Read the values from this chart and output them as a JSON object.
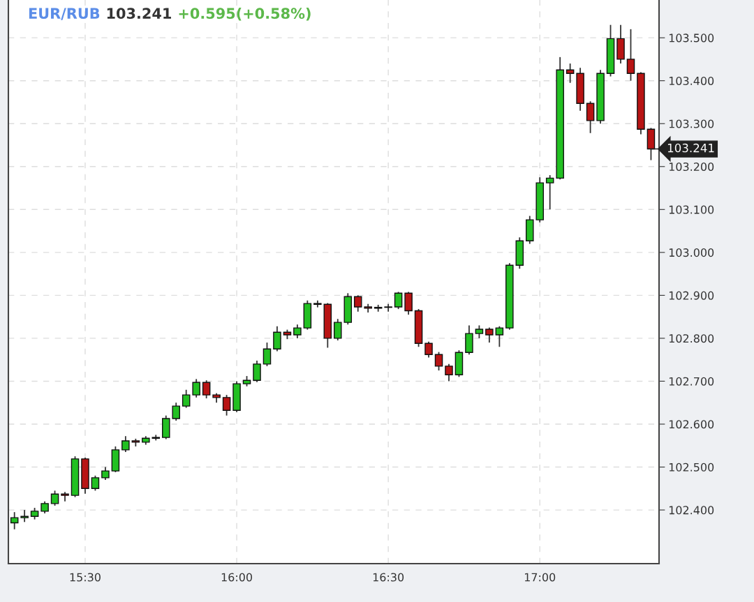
{
  "chart_data": {
    "type": "candlestick",
    "title": "EUR/RUB",
    "annotations": [
      "103.241",
      "+0.595(+0.58%)",
      {
        "text": "103.241",
        "x": 17.3667,
        "y": 103.241
      }
    ],
    "x": [
      15.2667,
      15.3,
      15.3333,
      15.3667,
      15.4,
      15.4333,
      15.4667,
      15.5,
      15.5333,
      15.5667,
      15.6,
      15.6333,
      15.6667,
      15.7,
      15.7333,
      15.7667,
      15.8,
      15.8333,
      15.8667,
      15.9,
      15.9333,
      15.9667,
      16,
      16.0333,
      16.0667,
      16.1,
      16.1333,
      16.1667,
      16.2,
      16.2333,
      16.2667,
      16.3,
      16.3333,
      16.3667,
      16.4,
      16.4333,
      16.4667,
      16.5,
      16.5333,
      16.5667,
      16.6,
      16.6333,
      16.6667,
      16.7,
      16.7333,
      16.7667,
      16.8,
      16.8333,
      16.8667,
      16.9,
      16.9333,
      16.9667,
      17,
      17.0333,
      17.0667,
      17.1,
      17.1333,
      17.1667,
      17.2,
      17.2333,
      17.2667,
      17.3,
      17.3333,
      17.3667
    ],
    "ohlc": [
      [
        102.37,
        102.395,
        102.355,
        102.382
      ],
      [
        102.382,
        102.4,
        102.372,
        102.385
      ],
      [
        102.385,
        102.405,
        102.378,
        102.397
      ],
      [
        102.397,
        102.42,
        102.392,
        102.415
      ],
      [
        102.415,
        102.445,
        102.41,
        102.437
      ],
      [
        102.437,
        102.442,
        102.42,
        102.434
      ],
      [
        102.434,
        102.525,
        102.43,
        102.519
      ],
      [
        102.519,
        102.522,
        102.438,
        102.45
      ],
      [
        102.45,
        102.48,
        102.445,
        102.475
      ],
      [
        102.475,
        102.5,
        102.47,
        102.491
      ],
      [
        102.491,
        102.548,
        102.488,
        102.54
      ],
      [
        102.54,
        102.572,
        102.535,
        102.561
      ],
      [
        102.561,
        102.566,
        102.548,
        102.558
      ],
      [
        102.558,
        102.572,
        102.552,
        102.567
      ],
      [
        102.567,
        102.575,
        102.562,
        102.569
      ],
      [
        102.569,
        102.62,
        102.565,
        102.613
      ],
      [
        102.613,
        102.65,
        102.608,
        102.642
      ],
      [
        102.642,
        102.68,
        102.638,
        102.668
      ],
      [
        102.668,
        102.705,
        102.662,
        102.697
      ],
      [
        102.697,
        102.702,
        102.66,
        102.668
      ],
      [
        102.668,
        102.672,
        102.65,
        102.662
      ],
      [
        102.662,
        102.668,
        102.62,
        102.632
      ],
      [
        102.632,
        102.7,
        102.628,
        102.694
      ],
      [
        102.694,
        102.712,
        102.688,
        102.702
      ],
      [
        102.702,
        102.748,
        102.698,
        102.74
      ],
      [
        102.74,
        102.79,
        102.735,
        102.775
      ],
      [
        102.775,
        102.828,
        102.77,
        102.814
      ],
      [
        102.814,
        102.82,
        102.798,
        102.808
      ],
      [
        102.808,
        102.832,
        102.8,
        102.824
      ],
      [
        102.824,
        102.888,
        102.82,
        102.881
      ],
      [
        102.881,
        102.888,
        102.872,
        102.879
      ],
      [
        102.879,
        102.882,
        102.778,
        102.8
      ],
      [
        102.8,
        102.845,
        102.795,
        102.837
      ],
      [
        102.837,
        102.905,
        102.832,
        102.897
      ],
      [
        102.897,
        102.9,
        102.862,
        102.873
      ],
      [
        102.873,
        102.88,
        102.86,
        102.87
      ],
      [
        102.87,
        102.878,
        102.862,
        102.872
      ],
      [
        102.872,
        102.88,
        102.862,
        102.873
      ],
      [
        102.873,
        102.908,
        102.868,
        102.905
      ],
      [
        102.905,
        102.908,
        102.855,
        102.864
      ],
      [
        102.864,
        102.868,
        102.78,
        102.788
      ],
      [
        102.788,
        102.792,
        102.755,
        102.762
      ],
      [
        102.762,
        102.768,
        102.725,
        102.735
      ],
      [
        102.735,
        102.74,
        102.7,
        102.715
      ],
      [
        102.715,
        102.772,
        102.71,
        102.767
      ],
      [
        102.767,
        102.83,
        102.762,
        102.811
      ],
      [
        102.811,
        102.83,
        102.8,
        102.821
      ],
      [
        102.821,
        102.825,
        102.79,
        102.808
      ],
      [
        102.808,
        102.828,
        102.78,
        102.824
      ],
      [
        102.824,
        102.975,
        102.82,
        102.97
      ],
      [
        102.97,
        103.035,
        102.962,
        103.027
      ],
      [
        103.027,
        103.085,
        103.02,
        103.076
      ],
      [
        103.076,
        103.175,
        103.07,
        103.162
      ],
      [
        103.162,
        103.18,
        103.1,
        103.173
      ],
      [
        103.173,
        103.455,
        103.17,
        103.425
      ],
      [
        103.425,
        103.44,
        103.395,
        103.417
      ],
      [
        103.417,
        103.43,
        103.33,
        103.347
      ],
      [
        103.347,
        103.352,
        103.278,
        103.307
      ],
      [
        103.307,
        103.425,
        103.3,
        103.417
      ],
      [
        103.417,
        103.53,
        103.41,
        103.498
      ],
      [
        103.498,
        103.53,
        103.44,
        103.45
      ],
      [
        103.45,
        103.52,
        103.4,
        103.417
      ],
      [
        103.417,
        103.42,
        103.275,
        103.287
      ],
      [
        103.287,
        103.29,
        103.215,
        103.241
      ]
    ],
    "colors": [
      "#22c022",
      "#22c022",
      "#22c022",
      "#22c022",
      "#22c022",
      "#b81414",
      "#22c022",
      "#b81414",
      "#22c022",
      "#22c022",
      "#22c022",
      "#22c022",
      "#b81414",
      "#22c022",
      "#22c022",
      "#22c022",
      "#22c022",
      "#22c022",
      "#22c022",
      "#b81414",
      "#b81414",
      "#b81414",
      "#22c022",
      "#22c022",
      "#22c022",
      "#22c022",
      "#22c022",
      "#b81414",
      "#22c022",
      "#22c022",
      "#b81414",
      "#b81414",
      "#22c022",
      "#22c022",
      "#b81414",
      "#b81414",
      "#22c022",
      "#22c022",
      "#22c022",
      "#b81414",
      "#b81414",
      "#b81414",
      "#b81414",
      "#b81414",
      "#22c022",
      "#22c022",
      "#22c022",
      "#b81414",
      "#22c022",
      "#22c022",
      "#22c022",
      "#22c022",
      "#22c022",
      "#22c022",
      "#22c022",
      "#b81414",
      "#b81414",
      "#b81414",
      "#22c022",
      "#22c022",
      "#b81414",
      "#b81414",
      "#b81414",
      "#b81414"
    ],
    "xlim": [
      15.2467,
      17.3933
    ],
    "ylim": [
      102.275,
      103.588
    ],
    "xticks": [
      {
        "value": 15.5,
        "label": "15:30"
      },
      {
        "value": 16,
        "label": "16:00"
      },
      {
        "value": 16.5,
        "label": "16:30"
      },
      {
        "value": 17,
        "label": "17:00"
      }
    ],
    "yticks": [
      {
        "value": 102.4,
        "label": "102.400"
      },
      {
        "value": 102.5,
        "label": "102.500"
      },
      {
        "value": 102.6,
        "label": "102.600"
      },
      {
        "value": 102.7,
        "label": "102.700"
      },
      {
        "value": 102.8,
        "label": "102.800"
      },
      {
        "value": 102.9,
        "label": "102.900"
      },
      {
        "value": 103.0,
        "label": "103.000"
      },
      {
        "value": 103.1,
        "label": "103.100"
      },
      {
        "value": 103.2,
        "label": "103.200"
      },
      {
        "value": 103.3,
        "label": "103.300"
      },
      {
        "value": 103.4,
        "label": "103.400"
      },
      {
        "value": 103.5,
        "label": "103.500"
      }
    ],
    "grid": true
  }
}
